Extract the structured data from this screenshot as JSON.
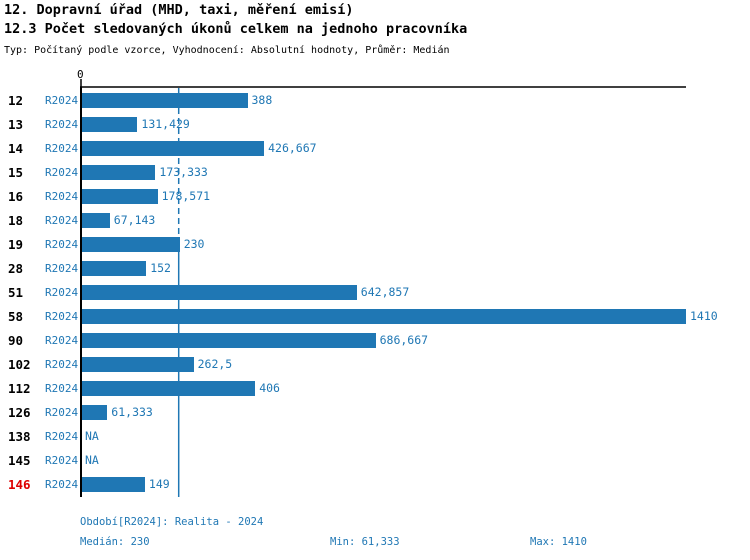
{
  "header": {
    "title": "12. Dopravní úřad (MHD, taxi, měření emisí)",
    "subtitle": "12.3 Počet sledovaných úkonů celkem na jednoho pracovníka",
    "meta": "Typ: Počítaný podle vzorce, Vyhodnocení: Absolutní hodnoty, Průměr: Medián"
  },
  "chart_data": {
    "type": "bar",
    "orientation": "horizontal",
    "title": "12.3 Počet sledovaných úkonů celkem na jednoho pracovníka",
    "xlabel": "",
    "ylabel": "",
    "xlim": [
      0,
      1410
    ],
    "axis_zero_label": "0",
    "grid": false,
    "median_value": 230,
    "period_label": "R2024",
    "categories": [
      "12",
      "13",
      "14",
      "15",
      "16",
      "18",
      "19",
      "28",
      "51",
      "58",
      "90",
      "102",
      "112",
      "126",
      "138",
      "145",
      "146"
    ],
    "rows": [
      {
        "category": "12",
        "period": "R2024",
        "value": 388,
        "label": "388",
        "highlight": false
      },
      {
        "category": "13",
        "period": "R2024",
        "value": 131.429,
        "label": "131,429",
        "highlight": false
      },
      {
        "category": "14",
        "period": "R2024",
        "value": 426.667,
        "label": "426,667",
        "highlight": false
      },
      {
        "category": "15",
        "period": "R2024",
        "value": 173.333,
        "label": "173,333",
        "highlight": false
      },
      {
        "category": "16",
        "period": "R2024",
        "value": 178.571,
        "label": "178,571",
        "highlight": false
      },
      {
        "category": "18",
        "period": "R2024",
        "value": 67.143,
        "label": "67,143",
        "highlight": false
      },
      {
        "category": "19",
        "period": "R2024",
        "value": 230,
        "label": "230",
        "highlight": false
      },
      {
        "category": "28",
        "period": "R2024",
        "value": 152,
        "label": "152",
        "highlight": false
      },
      {
        "category": "51",
        "period": "R2024",
        "value": 642.857,
        "label": "642,857",
        "highlight": false
      },
      {
        "category": "58",
        "period": "R2024",
        "value": 1410,
        "label": "1410",
        "highlight": false
      },
      {
        "category": "90",
        "period": "R2024",
        "value": 686.667,
        "label": "686,667",
        "highlight": false
      },
      {
        "category": "102",
        "period": "R2024",
        "value": 262.5,
        "label": "262,5",
        "highlight": false
      },
      {
        "category": "112",
        "period": "R2024",
        "value": 406,
        "label": "406",
        "highlight": false
      },
      {
        "category": "126",
        "period": "R2024",
        "value": 61.333,
        "label": "61,333",
        "highlight": false
      },
      {
        "category": "138",
        "period": "R2024",
        "value": null,
        "label": "NA",
        "highlight": false
      },
      {
        "category": "145",
        "period": "R2024",
        "value": null,
        "label": "NA",
        "highlight": false
      },
      {
        "category": "146",
        "period": "R2024",
        "value": 149,
        "label": "149",
        "highlight": true
      }
    ],
    "colors": {
      "bar": "#1f77b4",
      "blue_text": "#1f77b4",
      "median_line": "#1f77b4",
      "category_text": "#000000",
      "category_highlight": "#dd0000",
      "axis": "#000000"
    }
  },
  "footer": {
    "period_info": "Období[R2024]: Realita - 2024",
    "median": "Medián: 230",
    "min": "Min: 61,333",
    "max": "Max: 1410"
  }
}
